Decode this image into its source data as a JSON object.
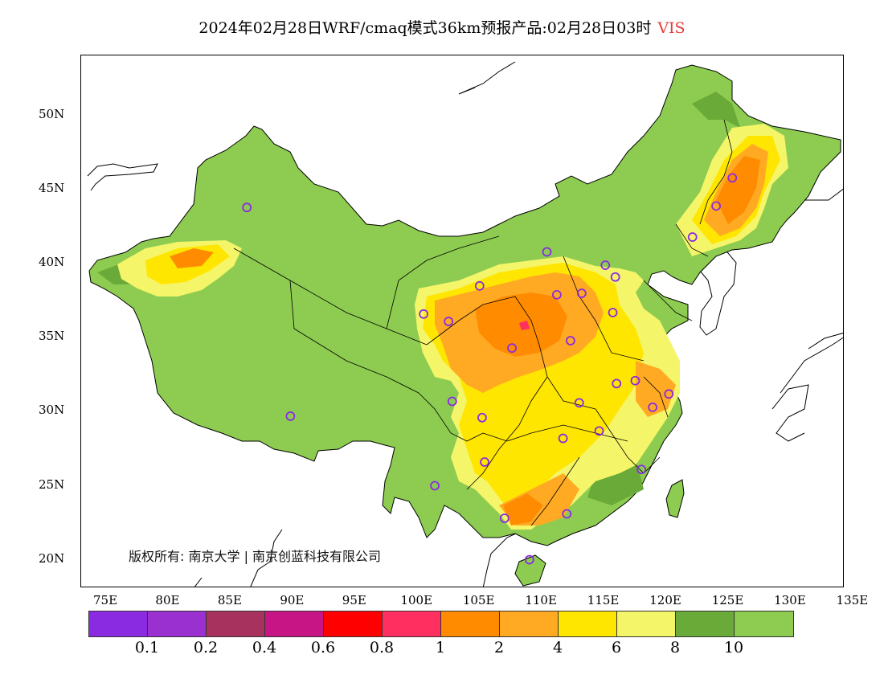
{
  "title": "2024年02月28日WRF/cmaq模式36km预报产品:02月28日03时",
  "variable": "VIS",
  "copyright": "版权所有: 南京大学 | 南京创蓝科技有限公司",
  "lat_labels": [
    "50N",
    "45N",
    "40N",
    "35N",
    "30N",
    "25N",
    "20N"
  ],
  "lat_values": [
    50,
    45,
    40,
    35,
    30,
    25,
    20
  ],
  "lon_labels": [
    "75E",
    "80E",
    "85E",
    "90E",
    "95E",
    "100E",
    "105E",
    "110E",
    "115E",
    "120E",
    "125E",
    "130E",
    "135E"
  ],
  "lon_values": [
    75,
    80,
    85,
    90,
    95,
    100,
    105,
    110,
    115,
    120,
    125,
    130,
    135
  ],
  "legend": {
    "colors": [
      "#8a2be2",
      "#9b30d0",
      "#a8325e",
      "#c71585",
      "#ff0000",
      "#ff3060",
      "#ff8c00",
      "#ffaa22",
      "#ffe600",
      "#f5f56a",
      "#6aaa38",
      "#8dcc50"
    ],
    "labels": [
      "0.1",
      "0.2",
      "0.4",
      "0.6",
      "0.8",
      "1",
      "2",
      "4",
      "6",
      "8",
      "10"
    ]
  },
  "palette": {
    "green": "#8dcc50",
    "dark_green": "#6aaa38",
    "light_yellow": "#f5f56a",
    "yellow": "#ffe600",
    "light_orange": "#ffaa22",
    "orange": "#ff8c00",
    "pink": "#ff3060",
    "station": "#8a2be2"
  },
  "stations": [
    {
      "lon": 87.6,
      "lat": 43.8
    },
    {
      "lon": 91.1,
      "lat": 29.7
    },
    {
      "lon": 101.8,
      "lat": 36.6
    },
    {
      "lon": 103.8,
      "lat": 36.1
    },
    {
      "lon": 106.3,
      "lat": 38.5
    },
    {
      "lon": 111.7,
      "lat": 40.8
    },
    {
      "lon": 112.5,
      "lat": 37.9
    },
    {
      "lon": 114.5,
      "lat": 38.0
    },
    {
      "lon": 116.4,
      "lat": 39.9
    },
    {
      "lon": 117.2,
      "lat": 39.1
    },
    {
      "lon": 117.0,
      "lat": 36.7
    },
    {
      "lon": 113.6,
      "lat": 34.8
    },
    {
      "lon": 108.9,
      "lat": 34.3
    },
    {
      "lon": 104.1,
      "lat": 30.7
    },
    {
      "lon": 106.5,
      "lat": 29.6
    },
    {
      "lon": 114.3,
      "lat": 30.6
    },
    {
      "lon": 117.3,
      "lat": 31.9
    },
    {
      "lon": 118.8,
      "lat": 32.1
    },
    {
      "lon": 121.5,
      "lat": 31.2
    },
    {
      "lon": 120.2,
      "lat": 30.3
    },
    {
      "lon": 115.9,
      "lat": 28.7
    },
    {
      "lon": 113.0,
      "lat": 28.2
    },
    {
      "lon": 106.7,
      "lat": 26.6
    },
    {
      "lon": 102.7,
      "lat": 25.0
    },
    {
      "lon": 108.3,
      "lat": 22.8
    },
    {
      "lon": 113.3,
      "lat": 23.1
    },
    {
      "lon": 119.3,
      "lat": 26.1
    },
    {
      "lon": 110.3,
      "lat": 20.0
    },
    {
      "lon": 123.4,
      "lat": 41.8
    },
    {
      "lon": 125.3,
      "lat": 43.9
    },
    {
      "lon": 126.6,
      "lat": 45.8
    }
  ]
}
